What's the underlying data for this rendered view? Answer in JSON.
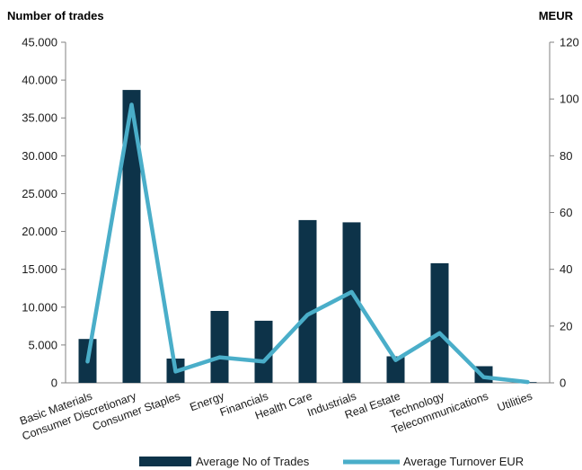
{
  "chart_data": {
    "type": "bar",
    "title": "",
    "ylabel": "Number of trades",
    "y2label": "MEUR",
    "ylim": [
      0,
      45000
    ],
    "y2lim": [
      0,
      120
    ],
    "yticks": [
      "0",
      "5.000",
      "10.000",
      "15.000",
      "20.000",
      "25.000",
      "30.000",
      "35.000",
      "40.000",
      "45.000"
    ],
    "y2ticks": [
      "0",
      "20",
      "40",
      "60",
      "80",
      "100",
      "120"
    ],
    "categories": [
      "Basic Materials",
      "Consumer Discretionary",
      "Consumer Staples",
      "Energy",
      "Financials",
      "Health Care",
      "Industrials",
      "Real Estate",
      "Technology",
      "Telecommunications",
      "Utilities"
    ],
    "series": [
      {
        "name": "Average No of Trades",
        "type": "bar",
        "axis": "left",
        "color": "#0d3349",
        "values": [
          5800,
          38700,
          3200,
          9500,
          8200,
          21500,
          21200,
          3500,
          15800,
          2200,
          100
        ]
      },
      {
        "name": "Average Turnover EUR",
        "type": "line",
        "axis": "right",
        "color": "#4aaec9",
        "values": [
          7.5,
          98,
          4,
          9,
          7.5,
          24,
          32,
          8,
          17.5,
          2,
          0.3
        ]
      }
    ],
    "grid": false,
    "legend": "bottom"
  }
}
